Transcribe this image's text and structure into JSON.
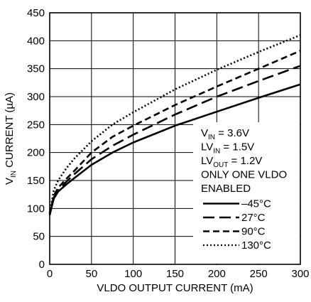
{
  "chart_data": {
    "type": "line",
    "xlabel": "VLDO OUTPUT CURRENT (mA)",
    "ylabel": {
      "main": "V",
      "sub": "IN",
      "rest": " CURRENT (µA)"
    },
    "xlim": [
      0,
      300
    ],
    "ylim": [
      0,
      450
    ],
    "xticks": [
      0,
      50,
      100,
      150,
      200,
      250,
      300
    ],
    "yticks": [
      0,
      50,
      100,
      150,
      200,
      250,
      300,
      350,
      400,
      450
    ],
    "grid": true,
    "conditions": [
      {
        "main": "V",
        "sub": "IN",
        "rest": " = 3.6V"
      },
      {
        "main": "LV",
        "sub": "IN",
        "rest": " = 1.5V"
      },
      {
        "main": "LV",
        "sub": "OUT",
        "rest": " = 1.2V"
      },
      {
        "main": "ONLY ONE VLDO",
        "sub": "",
        "rest": ""
      },
      {
        "main": "ENABLED",
        "sub": "",
        "rest": ""
      }
    ],
    "legend_position": "lower-right",
    "series": [
      {
        "name": "–45°C",
        "style": "solid",
        "x": [
          0,
          5,
          10,
          20,
          30,
          50,
          75,
          100,
          150,
          200,
          250,
          300
        ],
        "y": [
          90,
          118,
          130,
          143,
          155,
          178,
          200,
          218,
          248,
          273,
          298,
          322
        ]
      },
      {
        "name": "27°C",
        "style": "longdash",
        "x": [
          0,
          5,
          10,
          20,
          30,
          50,
          75,
          100,
          150,
          200,
          250,
          300
        ],
        "y": [
          88,
          120,
          132,
          148,
          162,
          188,
          212,
          232,
          268,
          300,
          328,
          355
        ]
      },
      {
        "name": "90°C",
        "style": "dash",
        "x": [
          0,
          5,
          10,
          20,
          30,
          50,
          75,
          100,
          150,
          200,
          250,
          300
        ],
        "y": [
          90,
          123,
          137,
          153,
          168,
          200,
          228,
          248,
          285,
          318,
          350,
          382
        ]
      },
      {
        "name": "130°C",
        "style": "dotted",
        "x": [
          0,
          5,
          10,
          20,
          30,
          50,
          75,
          100,
          150,
          200,
          250,
          300
        ],
        "y": [
          92,
          133,
          150,
          172,
          190,
          220,
          250,
          272,
          313,
          348,
          380,
          410
        ]
      }
    ]
  }
}
